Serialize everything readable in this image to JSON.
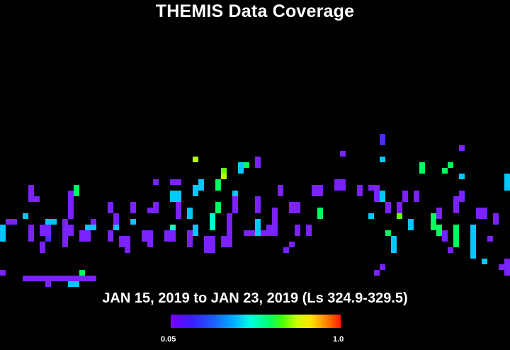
{
  "title": "THEMIS Data Coverage",
  "date_range": "JAN 15, 2019 to JAN 23, 2019 (Ls 324.9-329.5)",
  "colorbar": {
    "min_label": "0.05",
    "max_label": "1.0",
    "colors": [
      "#7a00ff",
      "#3b1bff",
      "#1e5cff",
      "#00b6ff",
      "#00ffe0",
      "#00ff6a",
      "#4cff00",
      "#c8ff00",
      "#ffe600",
      "#ff8a00",
      "#ff1a00"
    ]
  },
  "colors": {
    "background": "#000000",
    "text": "#ffffff"
  }
}
